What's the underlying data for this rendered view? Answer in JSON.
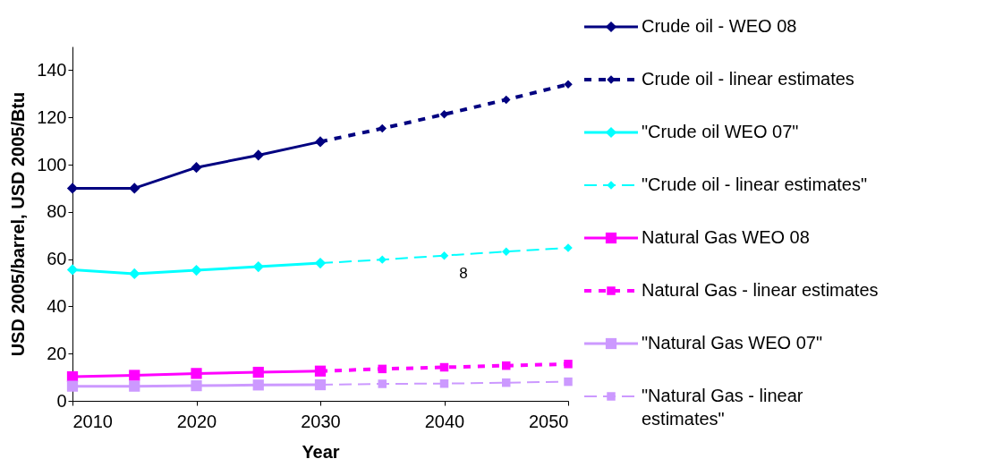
{
  "chart_data": {
    "type": "line",
    "xlabel": "Year",
    "ylabel": "USD 2005/barrel, USD 2005/Btu",
    "xlim": [
      2010,
      2050
    ],
    "xticks": [
      2010,
      2020,
      2030,
      2040,
      2050
    ],
    "ylim": [
      0,
      150
    ],
    "yticks": [
      0,
      20,
      40,
      60,
      80,
      100,
      120,
      140
    ],
    "grid": false,
    "legend": "right",
    "series": [
      {
        "name": "Crude oil - WEO 08",
        "color": "#000080",
        "marker": "diamond",
        "line_style": "solid",
        "x": [
          2010,
          2015,
          2020,
          2025,
          2030
        ],
        "values": [
          90,
          90,
          98.8,
          104,
          109.7
        ]
      },
      {
        "name": "Crude oil - linear estimates",
        "color": "#000080",
        "marker": "diamond",
        "line_style": "dotted",
        "x": [
          2030,
          2035,
          2040,
          2045,
          2050
        ],
        "values": [
          109.7,
          115.3,
          121.3,
          127.5,
          134
        ]
      },
      {
        "name": "\"Crude oil WEO 07\"",
        "color": "#00ffff",
        "marker": "diamond",
        "line_style": "solid",
        "x": [
          2010,
          2015,
          2020,
          2025,
          2030
        ],
        "values": [
          55.5,
          53.8,
          55.3,
          56.8,
          58.3
        ]
      },
      {
        "name": "\"Crude oil - linear estimates\"",
        "color": "#00ffff",
        "marker": "diamond",
        "line_style": "dashed",
        "x": [
          2030,
          2035,
          2040,
          2045,
          2050
        ],
        "values": [
          58.3,
          59.8,
          61.5,
          63.2,
          64.8
        ]
      },
      {
        "name": "Natural Gas WEO 08",
        "color": "#ff00ff",
        "marker": "square",
        "line_style": "solid",
        "x": [
          2010,
          2015,
          2020,
          2025,
          2030
        ],
        "values": [
          10.2,
          10.8,
          11.6,
          12.1,
          12.6
        ]
      },
      {
        "name": "Natural Gas - linear estimates",
        "color": "#ff00ff",
        "marker": "square",
        "line_style": "dotted",
        "x": [
          2030,
          2035,
          2040,
          2045,
          2050
        ],
        "values": [
          12.6,
          13.5,
          14.2,
          14.9,
          15.6
        ]
      },
      {
        "name": "\"Natural Gas WEO 07\"",
        "color": "#cc99ff",
        "marker": "square",
        "line_style": "solid",
        "x": [
          2010,
          2015,
          2020,
          2025,
          2030
        ],
        "values": [
          6.2,
          6.2,
          6.4,
          6.7,
          6.8
        ]
      },
      {
        "name": "\"Natural Gas - linear estimates\"",
        "color": "#cc99ff",
        "marker": "square",
        "line_style": "dashed",
        "x": [
          2030,
          2035,
          2040,
          2045,
          2050
        ],
        "values": [
          6.8,
          7.2,
          7.3,
          7.7,
          8.1
        ]
      }
    ],
    "annotations": [
      "8"
    ]
  }
}
